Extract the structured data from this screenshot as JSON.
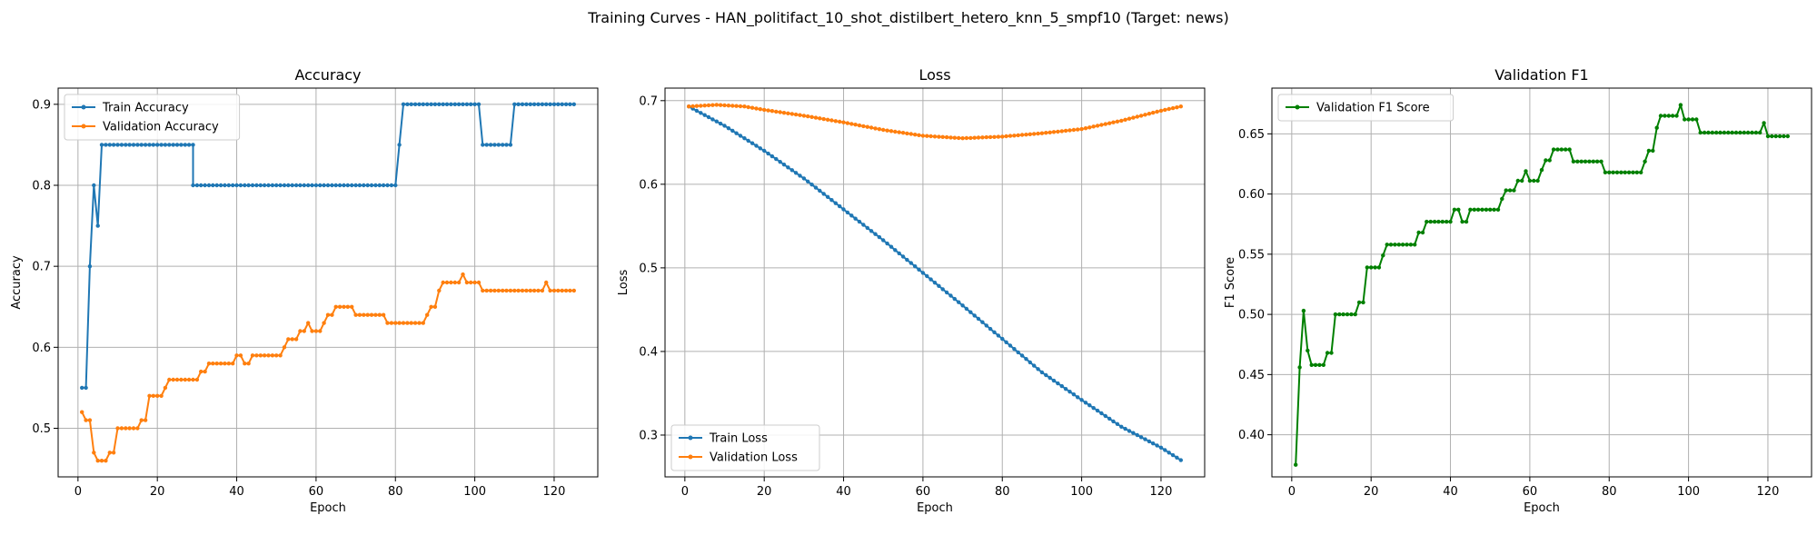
{
  "figure": {
    "suptitle": "Training Curves - HAN_politifact_10_shot_distilbert_hetero_knn_5_smpf10 (Target: news)"
  },
  "colors": {
    "train": "#1f77b4",
    "validation": "#ff7f0e",
    "f1": "#008000",
    "grid": "#b0b0b0"
  },
  "chart_data": [
    {
      "type": "line",
      "title": "Accuracy",
      "xlabel": "Epoch",
      "ylabel": "Accuracy",
      "xlim": [
        -5,
        131
      ],
      "ylim": [
        0.44,
        0.92
      ],
      "xticks": [
        0,
        20,
        40,
        60,
        80,
        100,
        120
      ],
      "yticks": [
        0.5,
        0.6,
        0.7,
        0.8,
        0.9
      ],
      "ytick_decimals": 1,
      "grid": true,
      "legend": "upper left",
      "series": [
        {
          "name": "Train Accuracy",
          "color_key": "train",
          "segments": [
            [
              1,
              0.55
            ],
            [
              2,
              0.55
            ],
            [
              3,
              0.7
            ],
            [
              4,
              0.8
            ],
            [
              5,
              0.75
            ],
            [
              6,
              0.85
            ],
            [
              29,
              0.85
            ],
            [
              29,
              0.8
            ],
            [
              80,
              0.8
            ],
            [
              81,
              0.85
            ],
            [
              82,
              0.9
            ],
            [
              101,
              0.9
            ],
            [
              102,
              0.85
            ],
            [
              109,
              0.85
            ],
            [
              110,
              0.9
            ],
            [
              125,
              0.9
            ]
          ]
        },
        {
          "name": "Validation Accuracy",
          "color_key": "validation",
          "segments": [
            [
              1,
              0.52
            ],
            [
              2,
              0.51
            ],
            [
              3,
              0.51
            ],
            [
              4,
              0.47
            ],
            [
              5,
              0.46
            ],
            [
              7,
              0.46
            ],
            [
              8,
              0.47
            ],
            [
              9,
              0.47
            ],
            [
              10,
              0.5
            ],
            [
              15,
              0.5
            ],
            [
              16,
              0.51
            ],
            [
              17,
              0.51
            ],
            [
              18,
              0.54
            ],
            [
              21,
              0.54
            ],
            [
              22,
              0.55
            ],
            [
              23,
              0.56
            ],
            [
              30,
              0.56
            ],
            [
              31,
              0.57
            ],
            [
              32,
              0.57
            ],
            [
              33,
              0.58
            ],
            [
              39,
              0.58
            ],
            [
              40,
              0.59
            ],
            [
              41,
              0.59
            ],
            [
              42,
              0.58
            ],
            [
              43,
              0.58
            ],
            [
              44,
              0.59
            ],
            [
              51,
              0.59
            ],
            [
              52,
              0.6
            ],
            [
              53,
              0.61
            ],
            [
              55,
              0.61
            ],
            [
              56,
              0.62
            ],
            [
              57,
              0.62
            ],
            [
              58,
              0.63
            ],
            [
              59,
              0.62
            ],
            [
              61,
              0.62
            ],
            [
              62,
              0.63
            ],
            [
              63,
              0.64
            ],
            [
              64,
              0.64
            ],
            [
              65,
              0.65
            ],
            [
              69,
              0.65
            ],
            [
              70,
              0.64
            ],
            [
              77,
              0.64
            ],
            [
              78,
              0.63
            ],
            [
              87,
              0.63
            ],
            [
              88,
              0.64
            ],
            [
              89,
              0.65
            ],
            [
              90,
              0.65
            ],
            [
              91,
              0.67
            ],
            [
              92,
              0.68
            ],
            [
              96,
              0.68
            ],
            [
              97,
              0.69
            ],
            [
              98,
              0.68
            ],
            [
              101,
              0.68
            ],
            [
              102,
              0.67
            ],
            [
              117,
              0.67
            ],
            [
              118,
              0.68
            ],
            [
              119,
              0.67
            ],
            [
              125,
              0.67
            ]
          ]
        }
      ]
    },
    {
      "type": "line",
      "title": "Loss",
      "xlabel": "Epoch",
      "ylabel": "Loss",
      "xlim": [
        -5,
        131
      ],
      "ylim": [
        0.25,
        0.715
      ],
      "xticks": [
        0,
        20,
        40,
        60,
        80,
        100,
        120
      ],
      "yticks": [
        0.3,
        0.4,
        0.5,
        0.6,
        0.7
      ],
      "ytick_decimals": 1,
      "grid": true,
      "legend": "lower left",
      "series": [
        {
          "name": "Train Loss",
          "color_key": "train",
          "segments": [
            [
              1,
              0.693
            ],
            [
              10,
              0.67
            ],
            [
              20,
              0.64
            ],
            [
              30,
              0.607
            ],
            [
              40,
              0.57
            ],
            [
              50,
              0.533
            ],
            [
              60,
              0.494
            ],
            [
              70,
              0.455
            ],
            [
              80,
              0.415
            ],
            [
              90,
              0.375
            ],
            [
              100,
              0.342
            ],
            [
              110,
              0.31
            ],
            [
              120,
              0.285
            ],
            [
              125,
              0.27
            ]
          ]
        },
        {
          "name": "Validation Loss",
          "color_key": "validation",
          "segments": [
            [
              1,
              0.693
            ],
            [
              8,
              0.695
            ],
            [
              15,
              0.693
            ],
            [
              20,
              0.689
            ],
            [
              30,
              0.682
            ],
            [
              40,
              0.674
            ],
            [
              50,
              0.665
            ],
            [
              60,
              0.658
            ],
            [
              70,
              0.655
            ],
            [
              80,
              0.657
            ],
            [
              90,
              0.661
            ],
            [
              100,
              0.666
            ],
            [
              110,
              0.676
            ],
            [
              120,
              0.688
            ],
            [
              125,
              0.693
            ]
          ]
        }
      ]
    },
    {
      "type": "line",
      "title": "Validation F1",
      "xlabel": "Epoch",
      "ylabel": "F1 Score",
      "xlim": [
        -5,
        131
      ],
      "ylim": [
        0.365,
        0.688
      ],
      "xticks": [
        0,
        20,
        40,
        60,
        80,
        100,
        120
      ],
      "yticks": [
        0.4,
        0.45,
        0.5,
        0.55,
        0.6,
        0.65
      ],
      "ytick_decimals": 2,
      "grid": true,
      "legend": "upper left",
      "series": [
        {
          "name": "Validation F1 Score",
          "color_key": "f1",
          "segments": [
            [
              1,
              0.375
            ],
            [
              2,
              0.456
            ],
            [
              3,
              0.503
            ],
            [
              4,
              0.47
            ],
            [
              5,
              0.458
            ],
            [
              8,
              0.458
            ],
            [
              9,
              0.468
            ],
            [
              10,
              0.468
            ],
            [
              11,
              0.5
            ],
            [
              16,
              0.5
            ],
            [
              17,
              0.51
            ],
            [
              18,
              0.51
            ],
            [
              19,
              0.539
            ],
            [
              22,
              0.539
            ],
            [
              23,
              0.549
            ],
            [
              24,
              0.558
            ],
            [
              31,
              0.558
            ],
            [
              32,
              0.568
            ],
            [
              33,
              0.568
            ],
            [
              34,
              0.577
            ],
            [
              40,
              0.577
            ],
            [
              41,
              0.587
            ],
            [
              42,
              0.587
            ],
            [
              43,
              0.577
            ],
            [
              44,
              0.577
            ],
            [
              45,
              0.587
            ],
            [
              52,
              0.587
            ],
            [
              53,
              0.596
            ],
            [
              54,
              0.603
            ],
            [
              56,
              0.603
            ],
            [
              57,
              0.611
            ],
            [
              58,
              0.611
            ],
            [
              59,
              0.619
            ],
            [
              60,
              0.611
            ],
            [
              62,
              0.611
            ],
            [
              63,
              0.62
            ],
            [
              64,
              0.628
            ],
            [
              65,
              0.628
            ],
            [
              66,
              0.637
            ],
            [
              70,
              0.637
            ],
            [
              71,
              0.627
            ],
            [
              78,
              0.627
            ],
            [
              79,
              0.618
            ],
            [
              88,
              0.618
            ],
            [
              89,
              0.627
            ],
            [
              90,
              0.636
            ],
            [
              91,
              0.636
            ],
            [
              92,
              0.655
            ],
            [
              93,
              0.665
            ],
            [
              97,
              0.665
            ],
            [
              98,
              0.674
            ],
            [
              99,
              0.662
            ],
            [
              102,
              0.662
            ],
            [
              103,
              0.651
            ],
            [
              118,
              0.651
            ],
            [
              119,
              0.659
            ],
            [
              120,
              0.648
            ],
            [
              125,
              0.648
            ]
          ]
        }
      ]
    }
  ]
}
